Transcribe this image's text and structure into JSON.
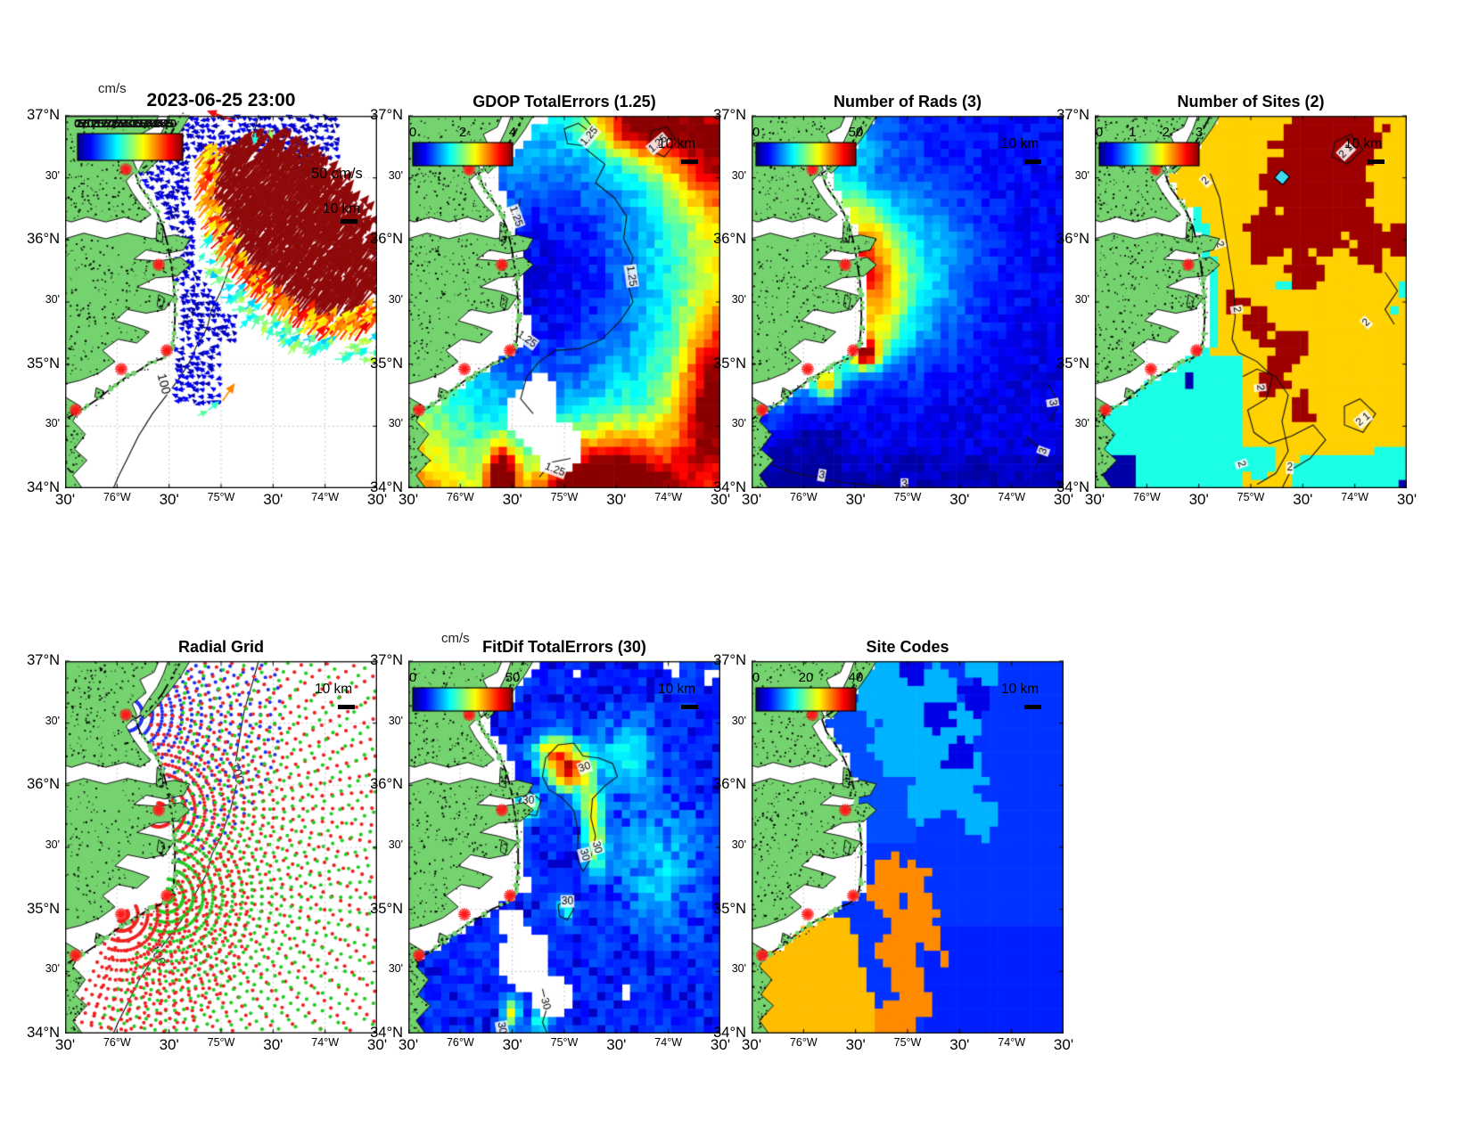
{
  "shared": {
    "x_ticks": [
      "30'",
      "76°W",
      "30'",
      "75°W",
      "30'",
      "74°W",
      "30'"
    ],
    "y_ticks": [
      "37°N",
      "30'",
      "36°N",
      "30'",
      "35°N",
      "30'",
      "34°N"
    ],
    "land_color": "#74d36e",
    "site_marker_color": "#ff1a1a",
    "radar_sites_uv": [
      [
        0.195,
        0.144
      ],
      [
        0.3,
        0.4
      ],
      [
        0.326,
        0.63
      ],
      [
        0.18,
        0.68
      ],
      [
        0.034,
        0.79
      ]
    ],
    "bathymetry_contour_label": "100"
  },
  "panels": [
    {
      "id": "surface-currents",
      "title": "2023-06-25 23:00",
      "units": "cm/s",
      "cb_garbled": "0 2.5 5 7.5 10 12.5 15 17.5 20 22.5 25 27.5 30 32.5 35 37.5 40 42.5 45 47.5 50",
      "ref_vector": "50 cm/s",
      "scale": "10 km",
      "contour": "100"
    },
    {
      "id": "gdop",
      "title": "GDOP TotalErrors (1.25)",
      "cb_ticks": [
        "0",
        "2",
        "4"
      ],
      "scale": "10 km",
      "contour": "1.25"
    },
    {
      "id": "num-rads",
      "title": "Number of Rads (3)",
      "cb_ticks": [
        "0",
        "50"
      ],
      "scale": "10 km",
      "contour": "3"
    },
    {
      "id": "num-sites",
      "title": "Number of Sites (2)",
      "cb_ticks": [
        "0",
        "1",
        "2",
        "3"
      ],
      "scale": "10 km",
      "contour": "2"
    },
    {
      "id": "radial-grid",
      "title": "Radial Grid",
      "scale": "10 km",
      "contour": "100"
    },
    {
      "id": "fitdif",
      "title": "FitDif TotalErrors (30)",
      "units": "cm/s",
      "cb_ticks": [
        "0",
        "50"
      ],
      "scale": "10 km",
      "contour": "30"
    },
    {
      "id": "site-codes",
      "title": "Site Codes",
      "cb_ticks": [
        "0",
        "20",
        "40"
      ],
      "scale": "10 km"
    }
  ],
  "chart_data": {
    "type": "heatmap",
    "figure_kind": "multi-panel coastal map figure (HF radar surface currents QC)",
    "lon_range_ticks": [
      "76.5W",
      "76W",
      "75.5W",
      "75W",
      "74.5W",
      "74W",
      "73.5W"
    ],
    "lat_range_ticks": [
      "37N",
      "36.5N",
      "36N",
      "35.5N",
      "35N",
      "34.5N",
      "34N"
    ],
    "grid": "dotted gray graticule every 30 minutes",
    "panels": [
      {
        "name": "surface-currents",
        "type": "vector-map",
        "colormap": "jet",
        "units": "cm/s",
        "colorbar_range": [
          0,
          50
        ],
        "stream": {
          "cx": 0.71,
          "cy": 0.33,
          "rx": 0.3,
          "ry": 0.17,
          "rot_deg": 40,
          "dir_deg": -52
        },
        "blue_field": {
          "u_max": 0.8,
          "v_max": 0.62
        },
        "extra_arrows": [
          [
            0.505,
            0.765,
            -55,
            24,
            0.74
          ],
          [
            0.46,
            0.79,
            -40,
            16,
            0.42
          ],
          [
            0.425,
            0.805,
            -25,
            13,
            0.47
          ],
          [
            0.61,
            0.045,
            95,
            14,
            0.4
          ],
          [
            0.655,
            0.035,
            75,
            12,
            0.52
          ],
          [
            0.545,
            0.5,
            -60,
            18,
            0.45
          ],
          [
            0.56,
            0.57,
            -45,
            14,
            0.38
          ]
        ],
        "notes": "small blue westward vectors inshore; dense dark-red NE-ward Gulf Stream jet offshore with yellow/orange/red fringe; red 50 cm/s reference arrow near title"
      },
      {
        "name": "gdop",
        "type": "pixel-heatmap",
        "colormap": "jet",
        "colorbar_range": [
          0,
          4
        ],
        "low_core": [
          0.44,
          0.44
        ],
        "warm_topright": [
          0.74,
          0.03
        ],
        "hot_bottom": [
          0.63,
          1.0
        ],
        "hot_nearshore_south": [
          0.3,
          0.97
        ],
        "holes": [
          [
            0.4,
            0.8,
            0.085
          ],
          [
            0.48,
            0.89,
            0.075
          ],
          [
            0.36,
            0.57,
            0.035
          ],
          [
            0.37,
            0.025,
            0.03
          ],
          [
            0.42,
            0.74,
            0.05
          ]
        ],
        "contour_value": "1.25"
      },
      {
        "name": "num-rads",
        "type": "pixel-heatmap",
        "colormap": "jet",
        "colorbar_range": [
          0,
          50
        ],
        "hotspots": [
          [
            0.33,
            0.415,
            0.62
          ],
          [
            0.37,
            0.64,
            0.62
          ],
          [
            0.24,
            0.72,
            0.45
          ],
          [
            0.3,
            0.045,
            0.6
          ]
        ],
        "coastal_band_peak_offset": 0.04,
        "contour_value": "3"
      },
      {
        "name": "num-sites",
        "type": "discrete-region-map",
        "colormap": "jet",
        "colorbar_range": [
          0,
          3
        ],
        "value_colors": {
          "1_cyan": 0.4,
          "2_gold": 0.67,
          "3_dark_red": 0.97,
          "0_navy": 0.04
        },
        "dark_red_blobs": [
          [
            0.72,
            0.08,
            0.12
          ],
          [
            0.84,
            0.05,
            0.08
          ],
          [
            0.62,
            0.17,
            0.09
          ],
          [
            0.8,
            0.22,
            0.1
          ],
          [
            0.7,
            0.3,
            0.08
          ],
          [
            0.55,
            0.32,
            0.065
          ],
          [
            0.88,
            0.35,
            0.06
          ],
          [
            0.67,
            0.42,
            0.05
          ],
          [
            0.52,
            0.55,
            0.05
          ],
          [
            0.62,
            0.62,
            0.055
          ],
          [
            0.57,
            0.7,
            0.045
          ],
          [
            0.66,
            0.79,
            0.035
          ],
          [
            0.97,
            0.33,
            0.04
          ],
          [
            0.44,
            0.5,
            0.025
          ]
        ],
        "cyan_patches": [
          [
            0.52,
            0.93,
            0.05
          ],
          [
            0.6,
            0.45,
            0.018
          ],
          [
            0.985,
            0.47,
            0.02
          ],
          [
            0.97,
            0.52,
            0.015
          ],
          [
            0.99,
            0.99,
            0.015
          ],
          [
            0.76,
            0.985,
            0.03
          ],
          [
            0.68,
            0.93,
            0.03
          ]
        ],
        "contour_value": "2"
      },
      {
        "name": "radial-grid",
        "type": "radial-dot-map",
        "fans": [
          {
            "site": 0,
            "color": "#2233ee",
            "a0": -70,
            "a1": 85,
            "rmax": 0.5,
            "da": 5,
            "dr": 0.0315
          },
          {
            "site": 1,
            "color": "#ee2222",
            "a0": -95,
            "a1": 115,
            "rmax": 1.1,
            "da": 4.5,
            "dr": 0.0315
          },
          {
            "site": 2,
            "color": "#22cc22",
            "a0": -85,
            "a1": 118,
            "rmax": 1.1,
            "da": 4.5,
            "dr": 0.0315
          },
          {
            "site": 3,
            "color": "#ee2222",
            "a0": -30,
            "a1": 110,
            "rmax": 0.42,
            "da": 5,
            "dr": 0.0315
          }
        ]
      },
      {
        "name": "fitdif",
        "type": "pixel-heatmap",
        "colormap": "jet",
        "units": "cm/s",
        "colorbar_range": [
          0,
          50
        ],
        "hot_blob": [
          0.52,
          0.3
        ],
        "yellow_streak": [
          0.59,
          0.45
        ],
        "small_blob": [
          0.385,
          0.385
        ],
        "holes": [
          [
            0.37,
            0.8,
            0.085
          ],
          [
            0.46,
            0.9,
            0.06
          ],
          [
            0.33,
            0.7,
            0.04
          ],
          [
            0.36,
            0.6,
            0.03
          ],
          [
            0.85,
            0.015,
            0.025
          ],
          [
            0.97,
            0.04,
            0.02
          ],
          [
            0.7,
            0.885,
            0.022
          ],
          [
            0.545,
            0.035,
            0.015
          ],
          [
            0.52,
            0.155,
            0.012
          ]
        ],
        "contour_value": "30"
      },
      {
        "name": "site-codes",
        "type": "discrete-region-map",
        "colormap": "jet",
        "colorbar_range": [
          0,
          40
        ],
        "region_colors": {
          "main_blue": 0.18,
          "light_blue": 0.3,
          "dark_blue": 0.1,
          "orange": 0.74,
          "gold": 0.69,
          "bottom_right_blue": 0.155
        },
        "light_blue_blobs": [
          [
            0.42,
            0.06,
            0.1
          ],
          [
            0.53,
            0.13,
            0.1
          ],
          [
            0.47,
            0.22,
            0.08
          ],
          [
            0.58,
            0.25,
            0.08
          ],
          [
            0.66,
            0.33,
            0.08
          ],
          [
            0.6,
            0.08,
            0.06
          ],
          [
            0.73,
            0.42,
            0.05
          ],
          [
            0.68,
            0.18,
            0.05
          ],
          [
            0.55,
            0.38,
            0.05
          ],
          [
            0.75,
            0.03,
            0.05
          ]
        ],
        "dark_blue_patches": [
          [
            0.6,
            0.15,
            0.05
          ],
          [
            0.66,
            0.26,
            0.045
          ],
          [
            0.52,
            0.03,
            0.04
          ],
          [
            0.72,
            0.1,
            0.05
          ]
        ],
        "orange_blobs": [
          [
            0.44,
            0.575,
            0.05
          ],
          [
            0.51,
            0.6,
            0.055
          ],
          [
            0.46,
            0.645,
            0.05
          ],
          [
            0.55,
            0.68,
            0.05
          ],
          [
            0.41,
            0.625,
            0.04
          ],
          [
            0.5,
            0.72,
            0.045
          ],
          [
            0.46,
            0.78,
            0.05
          ],
          [
            0.5,
            0.85,
            0.05
          ],
          [
            0.53,
            0.91,
            0.045
          ],
          [
            0.47,
            0.97,
            0.05
          ],
          [
            0.42,
            0.99,
            0.04
          ],
          [
            0.58,
            0.74,
            0.03
          ],
          [
            0.62,
            0.8,
            0.02
          ]
        ]
      }
    ]
  }
}
